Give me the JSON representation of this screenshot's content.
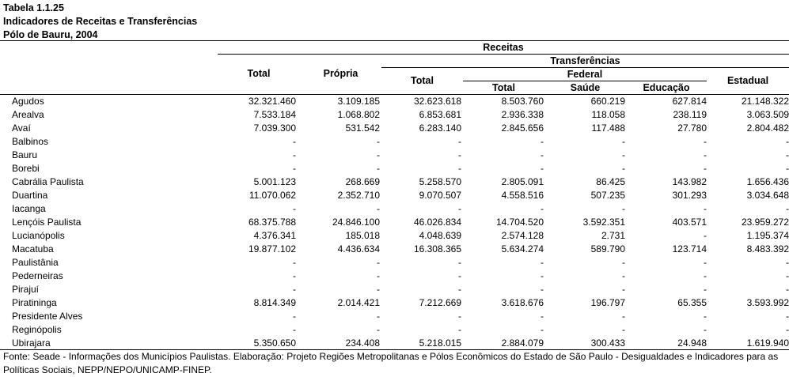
{
  "header": {
    "table_id": "Tabela 1.1.25",
    "title": "Indicadores de Receitas e Transferências",
    "subtitle": "Pólo de Bauru, 2004"
  },
  "columns": {
    "receitas": "Receitas",
    "transferencias": "Transferências",
    "federal": "Federal",
    "total": "Total",
    "propria": "Própria",
    "transf_total": "Total",
    "federal_total": "Total",
    "saude": "Saúde",
    "educacao": "Educação",
    "estadual": "Estadual"
  },
  "rows": [
    {
      "name": "Agudos",
      "v": [
        "32.321.460",
        "3.109.185",
        "32.623.618",
        "8.503.760",
        "660.219",
        "627.814",
        "21.148.322"
      ]
    },
    {
      "name": "Arealva",
      "v": [
        "7.533.184",
        "1.068.802",
        "6.853.681",
        "2.936.338",
        "118.058",
        "238.119",
        "3.063.509"
      ]
    },
    {
      "name": "Avaí",
      "v": [
        "7.039.300",
        "531.542",
        "6.283.140",
        "2.845.656",
        "117.488",
        "27.780",
        "2.804.482"
      ]
    },
    {
      "name": "Balbinos",
      "v": [
        "-",
        "-",
        "-",
        "-",
        "-",
        "-",
        "-"
      ]
    },
    {
      "name": "Bauru",
      "v": [
        "-",
        "-",
        "-",
        "-",
        "-",
        "-",
        "-"
      ]
    },
    {
      "name": "Borebi",
      "v": [
        "-",
        "-",
        "-",
        "-",
        "-",
        "-",
        "-"
      ]
    },
    {
      "name": "Cabrália Paulista",
      "v": [
        "5.001.123",
        "268.669",
        "5.258.570",
        "2.805.091",
        "86.425",
        "143.982",
        "1.656.436"
      ]
    },
    {
      "name": "Duartina",
      "v": [
        "11.070.062",
        "2.352.710",
        "9.070.507",
        "4.558.516",
        "507.235",
        "301.293",
        "3.034.648"
      ]
    },
    {
      "name": "Iacanga",
      "v": [
        "-",
        "-",
        "-",
        "-",
        "-",
        "-",
        "-"
      ]
    },
    {
      "name": "Lençóis Paulista",
      "v": [
        "68.375.788",
        "24.846.100",
        "46.026.834",
        "14.704.520",
        "3.592.351",
        "403.571",
        "23.959.272"
      ]
    },
    {
      "name": "Lucianópolis",
      "v": [
        "4.376.341",
        "185.018",
        "4.048.639",
        "2.574.128",
        "2.731",
        "-",
        "1.195.374"
      ]
    },
    {
      "name": "Macatuba",
      "v": [
        "19.877.102",
        "4.436.634",
        "16.308.365",
        "5.634.274",
        "589.790",
        "123.714",
        "8.483.392"
      ]
    },
    {
      "name": "Paulistânia",
      "v": [
        "-",
        "-",
        "-",
        "-",
        "-",
        "-",
        "-"
      ]
    },
    {
      "name": "Pederneiras",
      "v": [
        "-",
        "-",
        "-",
        "-",
        "-",
        "-",
        "-"
      ]
    },
    {
      "name": "Pirajuí",
      "v": [
        "-",
        "-",
        "-",
        "-",
        "-",
        "-",
        "-"
      ]
    },
    {
      "name": "Piratininga",
      "v": [
        "8.814.349",
        "2.014.421",
        "7.212.669",
        "3.618.676",
        "196.797",
        "65.355",
        "3.593.992"
      ]
    },
    {
      "name": "Presidente Alves",
      "v": [
        "-",
        "-",
        "-",
        "-",
        "-",
        "-",
        "-"
      ]
    },
    {
      "name": "Reginópolis",
      "v": [
        "-",
        "-",
        "-",
        "-",
        "-",
        "-",
        "-"
      ]
    },
    {
      "name": "Ubirajara",
      "v": [
        "5.350.650",
        "234.408",
        "5.218.015",
        "2.884.079",
        "300.433",
        "24.948",
        "1.619.940"
      ]
    }
  ],
  "source": "Fonte: Seade - Informações dos Municípios Paulistas. Elaboração: Projeto Regiões Metropolitanas e Pólos Econômicos do Estado de São Paulo - Desigualdades e Indicadores para as Políticas Sociais, NEPP/NEPO/UNICAMP-FINEP."
}
